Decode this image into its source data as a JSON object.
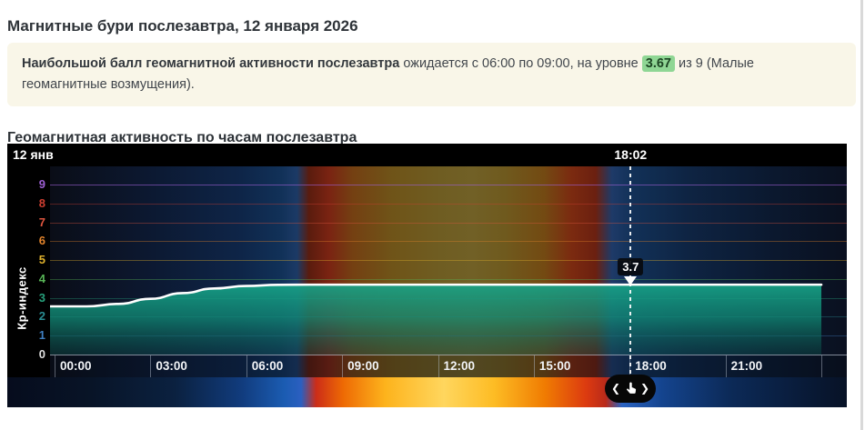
{
  "page": {
    "title": "Магнитные бури послезавтра, 12 января 2026",
    "section_title": "Геомагнитная активность по часам послезавтра",
    "summary": {
      "lead_bold": "Наибольшой балл геомагнитной активности послезавтра",
      "before_value": " ожидается с 06:00 по 09:00, на уровне ",
      "value": "3.67",
      "after_value": " из 9 (Малые геомагнитные возмущения)."
    }
  },
  "chart": {
    "date_label": "12 янв",
    "y_axis_label": "Кр-индекс",
    "cursor": {
      "time": "18:02",
      "value_label": "3.7",
      "hour_decimal": 18.03
    },
    "y_tick_colors": {
      "9": "#9d5fd3",
      "8": "#cf3f31",
      "7": "#e0563f",
      "6": "#e2832b",
      "5": "#dfb12c",
      "4": "#58b556",
      "3": "#27a17c",
      "2": "#2a8d93",
      "1": "#3f7fc1",
      "0": "#e0e0e0"
    },
    "line_color": "#ffffff",
    "fill_color_top": "#18ab8d",
    "fill_color_bottom": "#0b4a46",
    "nav": {
      "left_icon": "❮",
      "right_icon": "❯"
    }
  },
  "chart_data": {
    "type": "area",
    "title": "Геомагнитная активность по часам послезавтра",
    "xlabel": "",
    "ylabel": "Кр-индекс",
    "ylim": [
      0,
      10
    ],
    "y_ticks": [
      0,
      1,
      2,
      3,
      4,
      5,
      6,
      7,
      8,
      9
    ],
    "x_hours": [
      0,
      1,
      2,
      3,
      4,
      5,
      6,
      7,
      8,
      9,
      10,
      11,
      12,
      13,
      14,
      15,
      16,
      17,
      18,
      19,
      20,
      21,
      22,
      23,
      24
    ],
    "kp_values": [
      2.55,
      2.55,
      2.68,
      2.95,
      3.25,
      3.5,
      3.63,
      3.69,
      3.7,
      3.7,
      3.7,
      3.7,
      3.7,
      3.7,
      3.7,
      3.7,
      3.7,
      3.7,
      3.7,
      3.7,
      3.7,
      3.7,
      3.7,
      3.7,
      3.7
    ],
    "x_tick_labels": [
      "00:00",
      "03:00",
      "06:00",
      "09:00",
      "12:00",
      "15:00",
      "18:00",
      "21:00"
    ],
    "grid": true,
    "legend": false,
    "cursor_readout": {
      "time": "18:02",
      "kp": 3.7
    },
    "max_forecast": {
      "kp": 3.67,
      "from": "06:00",
      "to": "09:00",
      "scale_max": 9,
      "category": "Малые геомагнитные возмущения"
    }
  }
}
